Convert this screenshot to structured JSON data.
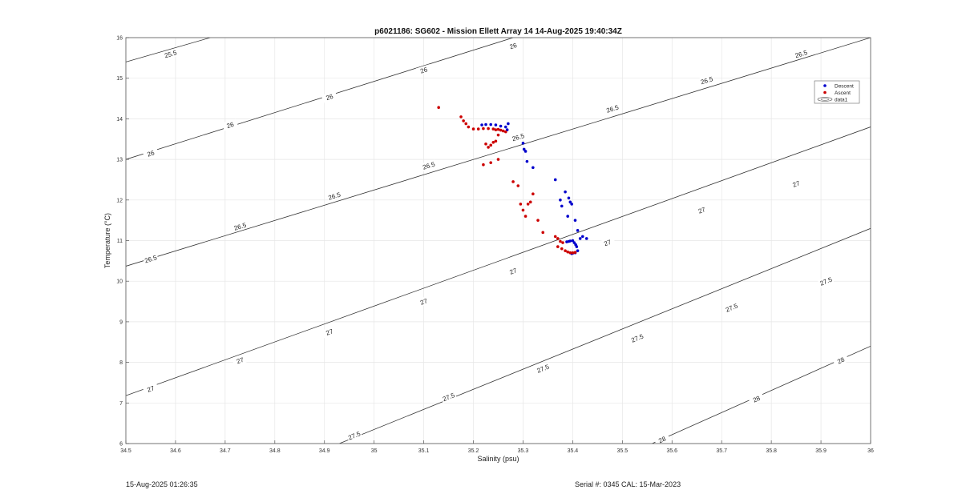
{
  "chart_data": {
    "type": "scatter",
    "title": "p6021186: SG602 - Mission Ellett Array 14 14-Aug-2025 19:40:34Z",
    "xlabel": "Salinity (psu)",
    "ylabel": "Temperature (°C)",
    "xlim": [
      34.5,
      36
    ],
    "ylim": [
      6,
      16
    ],
    "xticks": [
      "34.5",
      "34.6",
      "34.7",
      "34.8",
      "34.9",
      "35",
      "35.1",
      "35.2",
      "35.3",
      "35.4",
      "35.5",
      "35.6",
      "35.7",
      "35.8",
      "35.9",
      "36"
    ],
    "yticks": [
      "6",
      "7",
      "8",
      "9",
      "10",
      "11",
      "12",
      "13",
      "14",
      "15",
      "16"
    ],
    "grid": true,
    "legend_position": "top-right",
    "legend": [
      "Descent",
      "Ascent",
      "data1"
    ],
    "colors": {
      "descent": "#0000cc",
      "ascent": "#cc0000",
      "contour": "#333333"
    },
    "series": [
      {
        "name": "Descent",
        "x": [
          35.217,
          35.225,
          35.235,
          35.245,
          35.255,
          35.265,
          35.27,
          35.268,
          35.3,
          35.302,
          35.305,
          35.308,
          35.32,
          35.365,
          35.375,
          35.378,
          35.385,
          35.39,
          35.392,
          35.395,
          35.398,
          35.405,
          35.41,
          35.415,
          35.42,
          35.428,
          35.388,
          35.392,
          35.395,
          35.4,
          35.403,
          35.406,
          35.408,
          35.41,
          35.405,
          35.4,
          35.398
        ],
        "y": [
          13.85,
          13.86,
          13.86,
          13.85,
          13.82,
          13.8,
          13.88,
          13.73,
          13.4,
          13.25,
          13.2,
          12.95,
          12.8,
          12.5,
          12.0,
          11.85,
          12.2,
          11.6,
          12.05,
          11.95,
          11.9,
          11.5,
          11.25,
          11.05,
          11.1,
          11.05,
          10.97,
          10.98,
          10.99,
          11.0,
          10.95,
          10.9,
          10.85,
          10.75,
          10.7,
          10.69,
          10.68
        ],
        "color": "#0000cc"
      },
      {
        "name": "Ascent",
        "x": [
          35.13,
          35.175,
          35.18,
          35.185,
          35.19,
          35.2,
          35.21,
          35.22,
          35.23,
          35.24,
          35.245,
          35.25,
          35.255,
          35.26,
          35.265,
          35.25,
          35.245,
          35.24,
          35.235,
          35.23,
          35.225,
          35.22,
          35.235,
          35.25,
          35.28,
          35.29,
          35.295,
          35.3,
          35.305,
          35.31,
          35.32,
          35.315,
          35.33,
          35.34,
          35.365,
          35.37,
          35.375,
          35.38,
          35.37,
          35.378,
          35.385,
          35.39,
          35.395,
          35.4,
          35.405
        ],
        "y": [
          14.28,
          14.05,
          13.95,
          13.88,
          13.8,
          13.75,
          13.75,
          13.76,
          13.76,
          13.75,
          13.73,
          13.74,
          13.72,
          13.7,
          13.68,
          13.6,
          13.45,
          13.42,
          13.35,
          13.3,
          13.38,
          12.87,
          12.92,
          13.0,
          12.45,
          12.35,
          11.9,
          11.75,
          11.6,
          11.9,
          12.15,
          11.95,
          11.5,
          11.2,
          11.1,
          11.05,
          10.98,
          10.95,
          10.85,
          10.8,
          10.75,
          10.72,
          10.7,
          10.7,
          10.71
        ],
        "color": "#cc0000"
      }
    ],
    "contours": [
      {
        "label": "25.5",
        "x": [
          34.5,
          34.67
        ],
        "y": [
          15.4,
          16.0
        ]
      },
      {
        "label": "26",
        "x": [
          34.5,
          35.28
        ],
        "y": [
          13.0,
          16.0
        ]
      },
      {
        "label": "26.5",
        "x": [
          34.5,
          36.0
        ],
        "y": [
          10.37,
          16.0
        ]
      },
      {
        "label": "27",
        "x": [
          34.5,
          36.0
        ],
        "y": [
          7.18,
          13.8
        ]
      },
      {
        "label": "27.5",
        "x": [
          34.93,
          36.0
        ],
        "y": [
          6.0,
          11.3
        ]
      },
      {
        "label": "28",
        "x": [
          35.56,
          36.0
        ],
        "y": [
          6.0,
          8.4
        ]
      }
    ],
    "contour_labels": [
      {
        "text": "25.5",
        "x": 34.59,
        "y": 15.6
      },
      {
        "text": "26",
        "x": 34.55,
        "y": 13.15
      },
      {
        "text": "26",
        "x": 34.71,
        "y": 13.85
      },
      {
        "text": "26",
        "x": 34.91,
        "y": 14.54
      },
      {
        "text": "26",
        "x": 35.1,
        "y": 15.2
      },
      {
        "text": "26",
        "x": 35.28,
        "y": 15.8
      },
      {
        "text": "26.5",
        "x": 34.55,
        "y": 10.55
      },
      {
        "text": "26.5",
        "x": 34.73,
        "y": 11.35
      },
      {
        "text": "26.5",
        "x": 34.92,
        "y": 12.1
      },
      {
        "text": "26.5",
        "x": 35.11,
        "y": 12.85
      },
      {
        "text": "26.5",
        "x": 35.29,
        "y": 13.55
      },
      {
        "text": "26.5",
        "x": 35.48,
        "y": 14.25
      },
      {
        "text": "26.5",
        "x": 35.67,
        "y": 14.95
      },
      {
        "text": "26.5",
        "x": 35.86,
        "y": 15.6
      },
      {
        "text": "27",
        "x": 34.55,
        "y": 7.35
      },
      {
        "text": "27",
        "x": 34.73,
        "y": 8.05
      },
      {
        "text": "27",
        "x": 34.91,
        "y": 8.75
      },
      {
        "text": "27",
        "x": 35.1,
        "y": 9.5
      },
      {
        "text": "27",
        "x": 35.28,
        "y": 10.25
      },
      {
        "text": "27",
        "x": 35.47,
        "y": 10.95
      },
      {
        "text": "27",
        "x": 35.66,
        "y": 11.75
      },
      {
        "text": "27",
        "x": 35.85,
        "y": 12.4
      },
      {
        "text": "27.5",
        "x": 34.96,
        "y": 6.2
      },
      {
        "text": "27.5",
        "x": 35.15,
        "y": 7.15
      },
      {
        "text": "27.5",
        "x": 35.34,
        "y": 7.85
      },
      {
        "text": "27.5",
        "x": 35.53,
        "y": 8.6
      },
      {
        "text": "27.5",
        "x": 35.72,
        "y": 9.35
      },
      {
        "text": "27.5",
        "x": 35.91,
        "y": 10.0
      },
      {
        "text": "28",
        "x": 35.58,
        "y": 6.1
      },
      {
        "text": "28",
        "x": 35.77,
        "y": 7.1
      },
      {
        "text": "28",
        "x": 35.94,
        "y": 8.05
      }
    ]
  },
  "footer": {
    "timestamp": "15-Aug-2025 01:26:35",
    "serial": "Serial #: 0345  CAL: 15-Mar-2023"
  }
}
